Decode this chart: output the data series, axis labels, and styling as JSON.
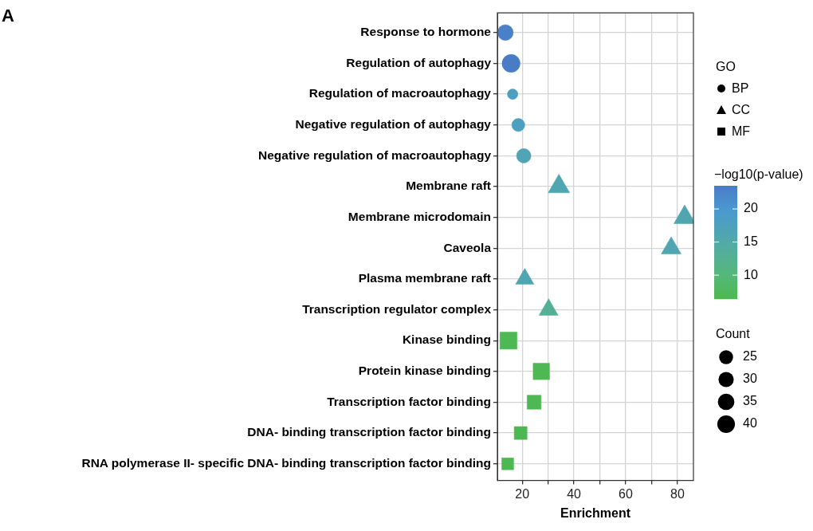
{
  "chart_data": {
    "type": "bubble",
    "orientation": "horizontal",
    "xlabel": "Enrichment",
    "legend_title": "GO",
    "clabel": "−log10(p-value)",
    "annotations": [
      "A",
      "Count"
    ],
    "categories": [
      "Response to hormone",
      "Regulation of autophagy",
      "Regulation of macroautophagy",
      "Negative regulation of autophagy",
      "Negative regulation of macroautophagy",
      "Membrane raft",
      "Membrane microdomain",
      "Caveola",
      "Plasma membrane raft",
      "Transcription regulator complex",
      "Kinase binding",
      "Protein kinase binding",
      "Transcription factor binding",
      "DNA- binding transcription factor binding",
      "RNA polymerase II- specific DNA- binding transcription factor binding"
    ],
    "series": [
      {
        "name": "BP",
        "marker": "circle",
        "values": [
          13.5,
          15.7,
          16.3,
          18.5,
          20.6,
          null,
          null,
          null,
          null,
          null,
          null,
          null,
          null,
          null,
          null
        ],
        "sizes": [
          32,
          42,
          14,
          22,
          27,
          null,
          null,
          null,
          null,
          null,
          null,
          null,
          null,
          null,
          null
        ],
        "cvalues": [
          23,
          23.5,
          18,
          18,
          16.5,
          null,
          null,
          null,
          null,
          null,
          null,
          null,
          null,
          null,
          null
        ],
        "colors": [
          "#4a80c7",
          "#4a7cc6",
          "#4d9fc0",
          "#4d9fc0",
          "#50a4b4",
          null,
          null,
          null,
          null,
          null,
          null,
          null,
          null,
          null,
          null
        ]
      },
      {
        "name": "CC",
        "marker": "triangle",
        "values": [
          null,
          null,
          null,
          null,
          null,
          34.2,
          82.8,
          77.6,
          21,
          30.2,
          null,
          null,
          null,
          null,
          null
        ],
        "sizes": [
          null,
          null,
          null,
          null,
          null,
          33,
          33,
          28,
          24,
          26,
          null,
          null,
          null,
          null,
          null
        ],
        "cvalues": [
          null,
          null,
          null,
          null,
          null,
          16,
          16,
          16,
          16,
          13,
          null,
          null,
          null,
          null,
          null
        ],
        "colors": [
          null,
          null,
          null,
          null,
          null,
          "#50a6b0",
          "#50a6b0",
          "#50a6b0",
          "#50a6b0",
          "#53af96",
          null,
          null,
          null,
          null,
          null
        ]
      },
      {
        "name": "MF",
        "marker": "square",
        "values": [
          null,
          null,
          null,
          null,
          null,
          null,
          null,
          null,
          null,
          null,
          14.7,
          27.4,
          24.6,
          19.4,
          14.4
        ],
        "sizes": [
          null,
          null,
          null,
          null,
          null,
          null,
          null,
          null,
          null,
          null,
          48,
          44,
          32,
          27,
          23
        ],
        "cvalues": [
          null,
          null,
          null,
          null,
          null,
          null,
          null,
          null,
          null,
          null,
          7,
          6.8,
          6.8,
          6.7,
          6.6
        ],
        "colors": [
          null,
          null,
          null,
          null,
          null,
          null,
          null,
          null,
          null,
          null,
          "#4eb855",
          "#4eb852",
          "#4eb852",
          "#4db851",
          "#4db850"
        ]
      }
    ],
    "size_legend": [
      25,
      30,
      35,
      40
    ],
    "clim": [
      6.4,
      23.5
    ],
    "cticks": [
      10,
      15,
      20
    ],
    "xlim": [
      10.4,
      86.2
    ],
    "xticks": [
      20,
      {
        "value": 30,
        "label": null
      },
      40,
      {
        "value": 50,
        "label": null
      },
      60,
      {
        "value": 70,
        "label": null
      },
      80
    ],
    "grid": true,
    "legend": "right"
  }
}
